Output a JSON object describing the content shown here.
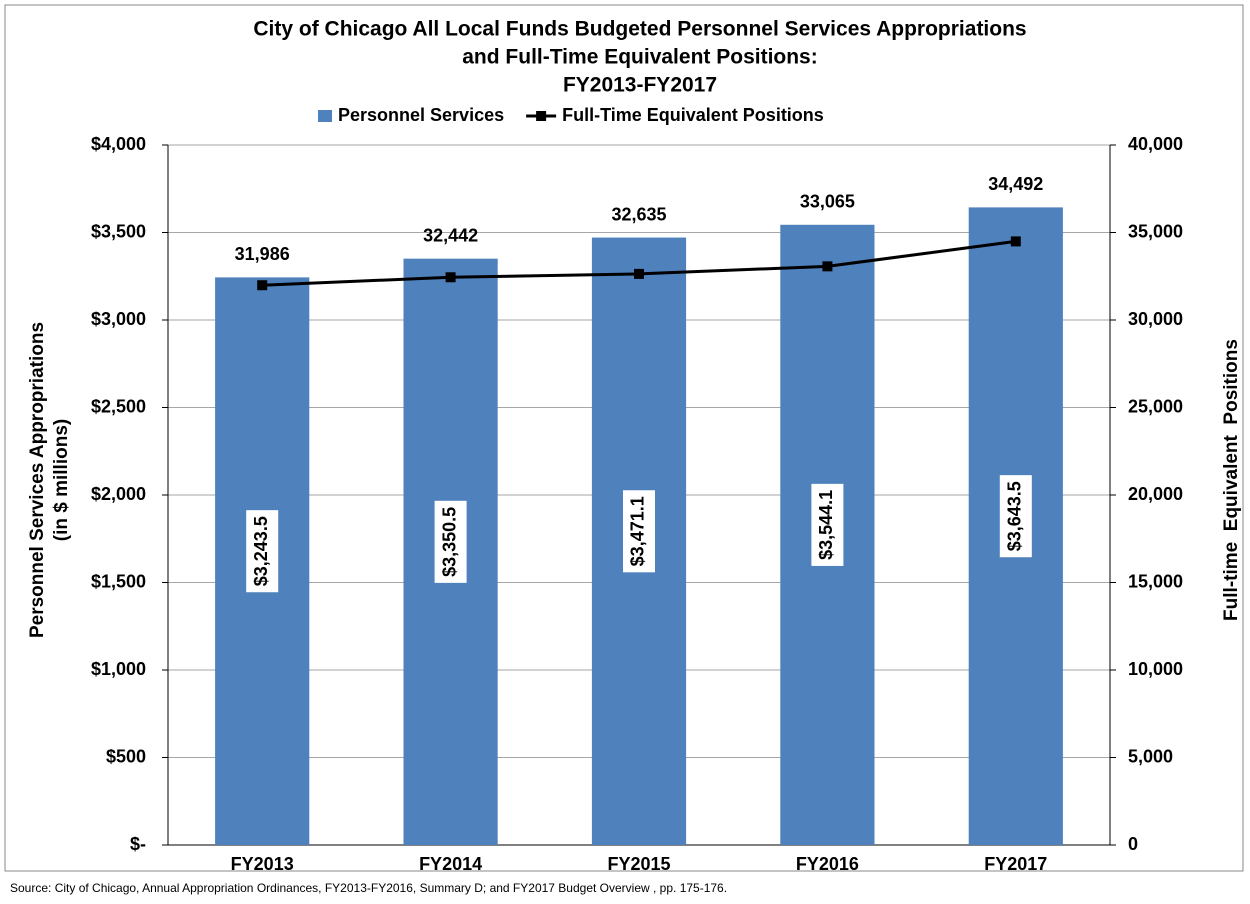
{
  "chart_data": {
    "type": "bar_line",
    "title": [
      "City of Chicago All Local Funds Budgeted Personnel Services Appropriations",
      "and Full-Time Equivalent Positions:",
      "FY2013-FY2017"
    ],
    "y_label": [
      "Personnel Services Appropriations",
      "(in $ millions)"
    ],
    "y2_label": "Full-time  Equivalent  Positions",
    "source": "Source: City of Chicago, Annual Appropriation Ordinances, FY2013-FY2016, Summary D; and FY2017 Budget Overview , pp. 175-176.",
    "categories": [
      "FY2013",
      "FY2014",
      "FY2015",
      "FY2016",
      "FY2017"
    ],
    "series": [
      {
        "name": "Personnel Services",
        "type": "bar",
        "color": "#4f81bd",
        "axis": "y",
        "values": [
          3243.5,
          3350.5,
          3471.1,
          3544.1,
          3643.5
        ],
        "value_labels": [
          "$3,243.5",
          "$3,350.5",
          "$3,471.1",
          "$3,544.1",
          "$3,643.5"
        ]
      },
      {
        "name": "Full-Time Equivalent Positions",
        "type": "line",
        "color": "#000000",
        "axis": "y2",
        "values": [
          31986,
          32442,
          32635,
          33065,
          34492
        ],
        "value_labels": [
          "31,986",
          "32,442",
          "32,635",
          "33,065",
          "34,492"
        ]
      }
    ],
    "ylim": [
      0,
      4000
    ],
    "yticks": [
      {
        "value": 0,
        "label": "$-"
      },
      {
        "value": 500,
        "label": "$500"
      },
      {
        "value": 1000,
        "label": "$1,000"
      },
      {
        "value": 1500,
        "label": "$1,500"
      },
      {
        "value": 2000,
        "label": "$2,000"
      },
      {
        "value": 2500,
        "label": "$2,500"
      },
      {
        "value": 3000,
        "label": "$3,000"
      },
      {
        "value": 3500,
        "label": "$3,500"
      },
      {
        "value": 4000,
        "label": "$4,000"
      }
    ],
    "y2lim": [
      0,
      40000
    ],
    "y2ticks": [
      0,
      {
        "value": 5000,
        "label": "5,000"
      },
      {
        "value": 10000,
        "label": "10,000"
      },
      {
        "value": 15000,
        "label": "15,000"
      },
      {
        "value": 20000,
        "label": "20,000"
      },
      {
        "value": 25000,
        "label": "25,000"
      },
      {
        "value": 30000,
        "label": "30,000"
      },
      {
        "value": 35000,
        "label": "35,000"
      },
      {
        "value": 40000,
        "label": "40,000"
      }
    ],
    "grid": true,
    "legend": "top"
  }
}
